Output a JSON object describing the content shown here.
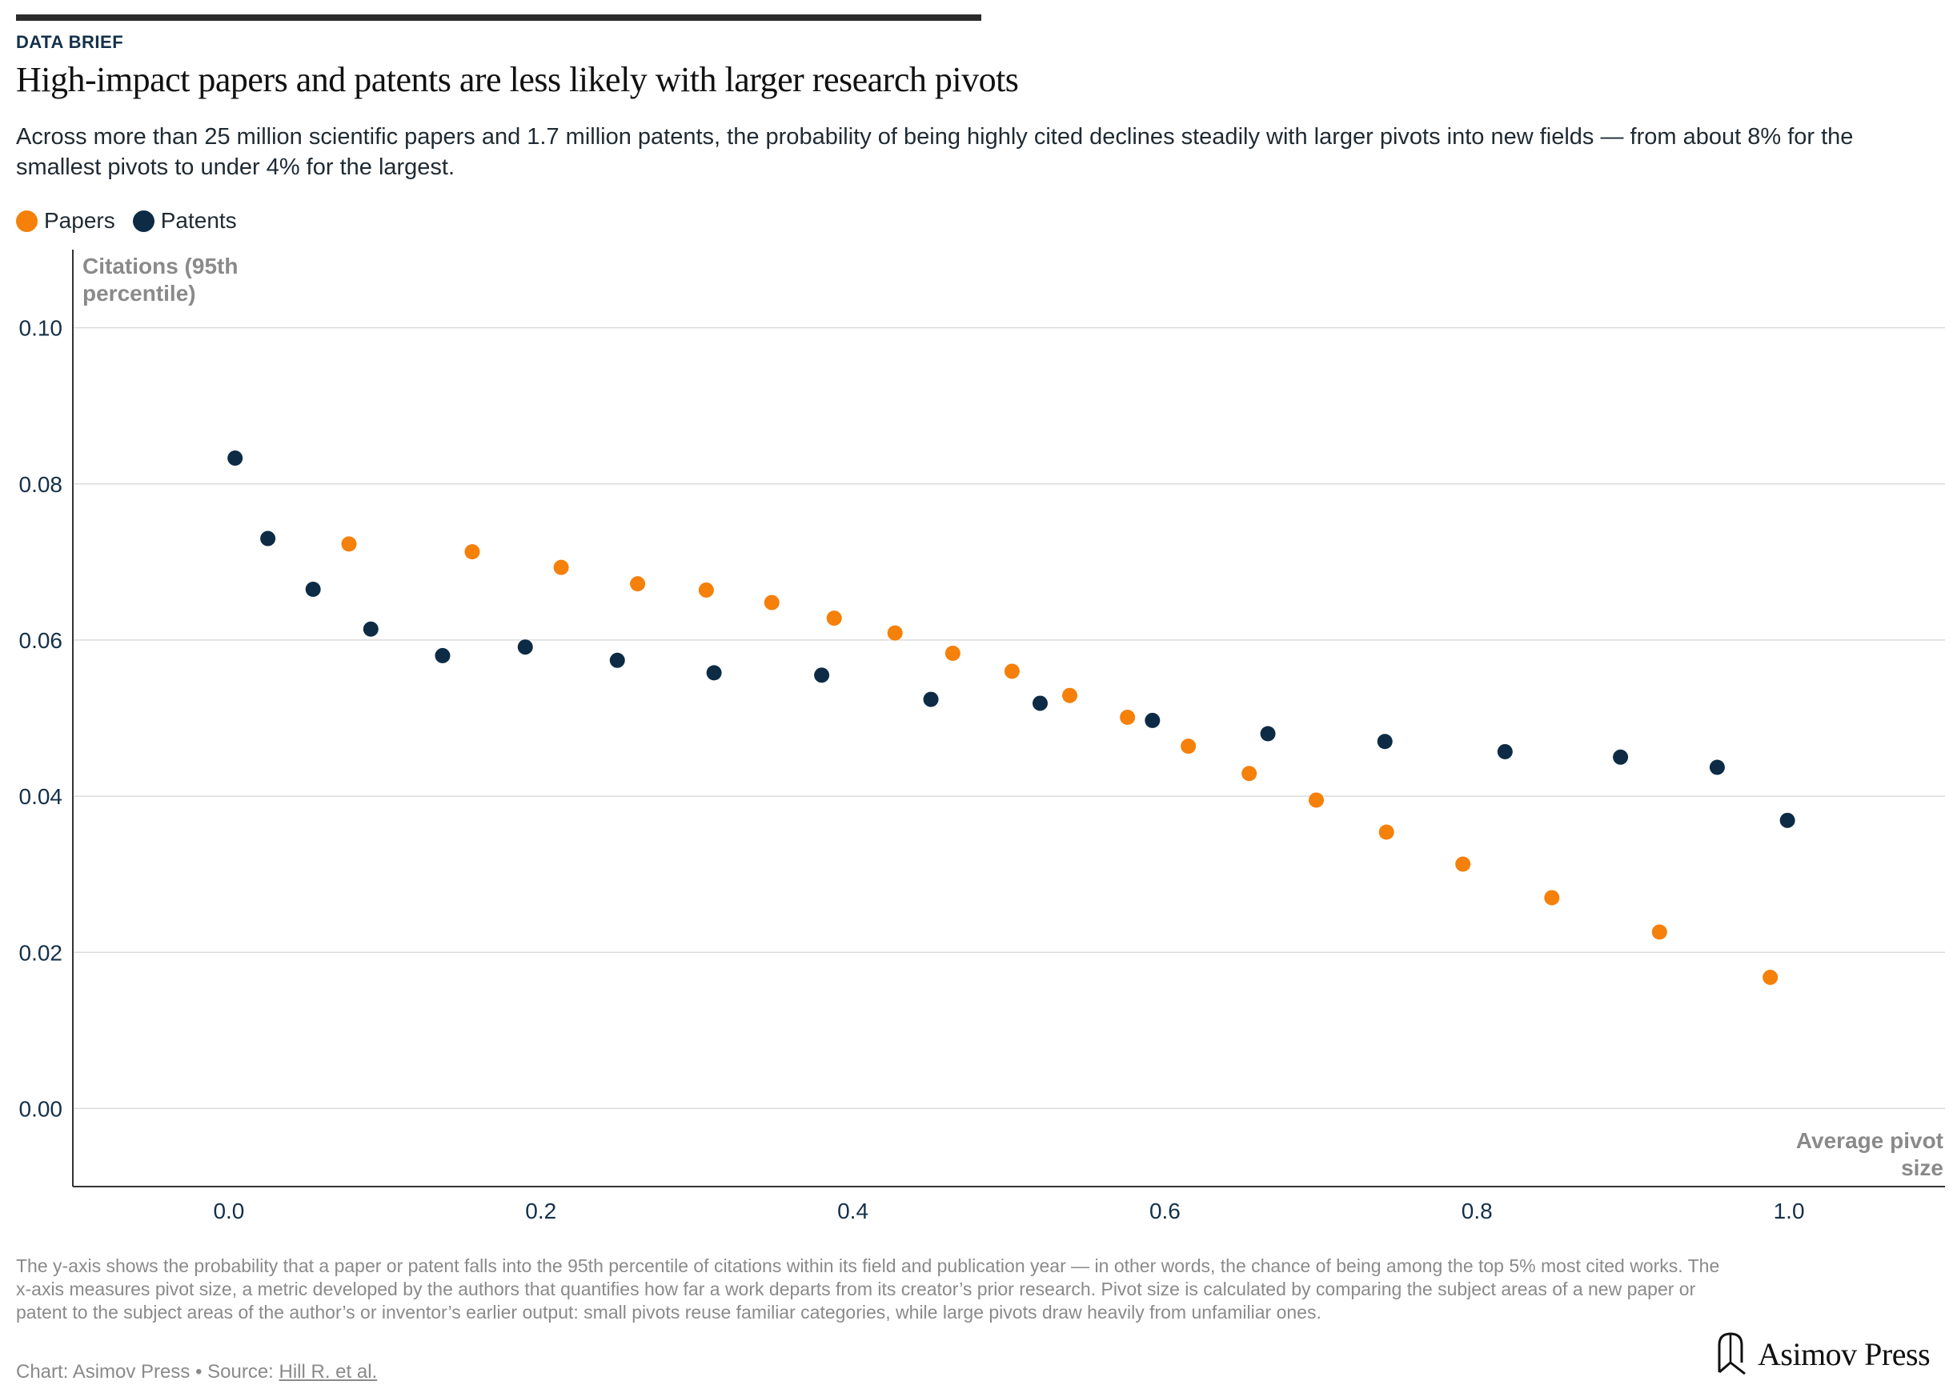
{
  "header": {
    "kicker": "DATA BRIEF",
    "title": "High-impact papers and patents are less likely with larger research pivots",
    "subtitle": "Across more than 25 million scientific papers and 1.7 million patents, the probability of being highly cited declines steadily with larger pivots into new fields — from about 8% for the smallest pivots to under 4% for the largest."
  },
  "legend": [
    {
      "label": "Papers",
      "color": "#f5800a"
    },
    {
      "label": "Patents",
      "color": "#0d2b45"
    }
  ],
  "chart_data": {
    "type": "scatter",
    "ylabel": "Citations (95th percentile)",
    "xlabel": "Average pivot size",
    "xlim": [
      -0.1,
      1.1
    ],
    "ylim": [
      -0.01,
      0.11
    ],
    "x_ticks": [
      "0.0",
      "0.2",
      "0.4",
      "0.6",
      "0.8",
      "1.0"
    ],
    "x_tick_values": [
      0.0,
      0.2,
      0.4,
      0.6,
      0.8,
      1.0
    ],
    "y_ticks": [
      "0.00",
      "0.02",
      "0.04",
      "0.06",
      "0.08",
      "0.10"
    ],
    "y_tick_values": [
      0.0,
      0.02,
      0.04,
      0.06,
      0.08,
      0.1
    ],
    "grid": "horizontal",
    "legend_position": "top-left",
    "series": [
      {
        "name": "Papers",
        "color": "#f5800a",
        "points": [
          [
            0.077,
            0.0723
          ],
          [
            0.156,
            0.0713
          ],
          [
            0.213,
            0.0693
          ],
          [
            0.262,
            0.0672
          ],
          [
            0.306,
            0.0664
          ],
          [
            0.348,
            0.0648
          ],
          [
            0.388,
            0.0628
          ],
          [
            0.427,
            0.0609
          ],
          [
            0.464,
            0.0583
          ],
          [
            0.502,
            0.056
          ],
          [
            0.539,
            0.0529
          ],
          [
            0.576,
            0.0501
          ],
          [
            0.615,
            0.0464
          ],
          [
            0.654,
            0.0429
          ],
          [
            0.697,
            0.0395
          ],
          [
            0.742,
            0.0354
          ],
          [
            0.791,
            0.0313
          ],
          [
            0.848,
            0.027
          ],
          [
            0.917,
            0.0226
          ],
          [
            0.988,
            0.0168
          ]
        ]
      },
      {
        "name": "Patents",
        "color": "#0d2b45",
        "points": [
          [
            0.004,
            0.0833
          ],
          [
            0.025,
            0.073
          ],
          [
            0.054,
            0.0665
          ],
          [
            0.091,
            0.0614
          ],
          [
            0.137,
            0.058
          ],
          [
            0.19,
            0.0591
          ],
          [
            0.249,
            0.0574
          ],
          [
            0.311,
            0.0558
          ],
          [
            0.38,
            0.0555
          ],
          [
            0.45,
            0.0524
          ],
          [
            0.52,
            0.0519
          ],
          [
            0.592,
            0.0497
          ],
          [
            0.666,
            0.048
          ],
          [
            0.741,
            0.047
          ],
          [
            0.818,
            0.0457
          ],
          [
            0.892,
            0.045
          ],
          [
            0.954,
            0.0437
          ],
          [
            0.999,
            0.0369
          ]
        ]
      }
    ]
  },
  "notes": "The y-axis shows the probability that a paper or patent falls into the 95th percentile of citations within its field and publication year — in other words, the chance of being among the top 5% most cited works. The x-axis measures pivot size, a metric developed by the authors that quantifies how far a work departs from its creator’s prior research. Pivot size is calculated by comparing the subject areas of a new paper or patent to the subject areas of the author’s or inventor’s earlier output: small pivots reuse familiar categories, while large pivots draw heavily from unfamiliar ones.",
  "credit": {
    "prefix": "Chart: Asimov Press • Source: ",
    "source_link": "Hill R. et al."
  },
  "brand": {
    "name": "Asimov Press"
  },
  "colors": {
    "axis": "#333333",
    "grid": "#dcdcdc",
    "tick_label": "#14304a",
    "axis_title": "#8a8a8a"
  }
}
